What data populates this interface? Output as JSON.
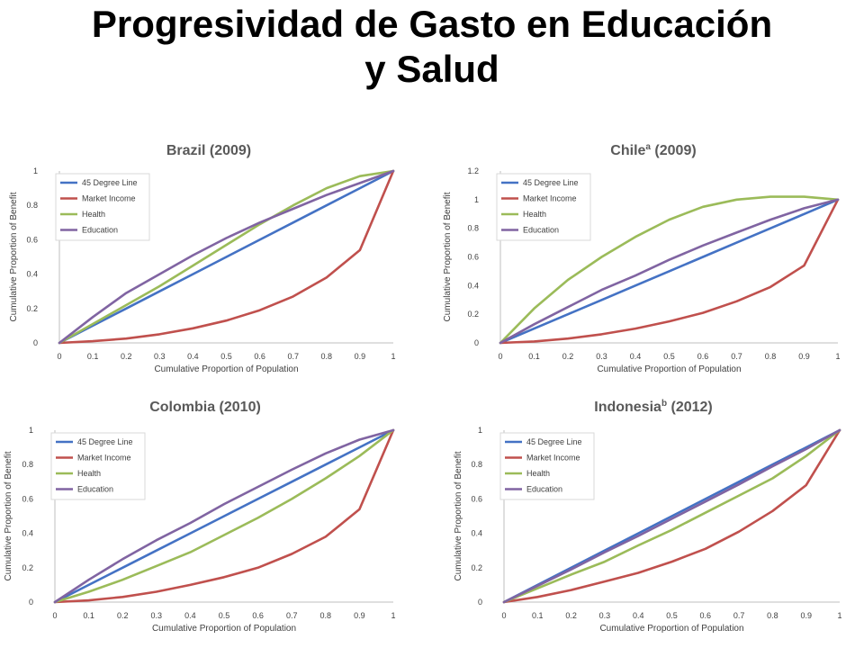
{
  "page_title_line1": "Progresividad de Gasto en Educación",
  "page_title_line2": "y Salud",
  "colors": {
    "45 Degree Line": "#4472C4",
    "Market Income": "#C0504D",
    "Health": "#9BBB59",
    "Education": "#8064A2"
  },
  "chart_data": [
    {
      "type": "line",
      "title": "Brazil (2009)",
      "title_superscript": "",
      "xlabel": "Cumulative Proportion of Population",
      "ylabel": "Cumulative Proportion of Benefit",
      "x": [
        0,
        0.1,
        0.2,
        0.3,
        0.4,
        0.5,
        0.6,
        0.7,
        0.8,
        0.9,
        1
      ],
      "xticks": [
        "0",
        "0.1",
        "0.2",
        "0.3",
        "0.4",
        "0.5",
        "0.6",
        "0.7",
        "0.8",
        "0.9",
        "1"
      ],
      "yticks": [
        "0",
        "0.2",
        "0.4",
        "0.6",
        "0.8",
        "1"
      ],
      "ylim": [
        0,
        1
      ],
      "legend_position": "top-left",
      "series": [
        {
          "name": "45 Degree Line",
          "values": [
            0,
            0.1,
            0.2,
            0.3,
            0.4,
            0.5,
            0.6,
            0.7,
            0.8,
            0.9,
            1
          ]
        },
        {
          "name": "Market Income",
          "values": [
            0,
            0.01,
            0.025,
            0.05,
            0.085,
            0.13,
            0.19,
            0.27,
            0.38,
            0.54,
            1
          ]
        },
        {
          "name": "Health",
          "values": [
            0,
            0.11,
            0.22,
            0.33,
            0.45,
            0.57,
            0.69,
            0.8,
            0.9,
            0.97,
            1
          ]
        },
        {
          "name": "Education",
          "values": [
            0,
            0.15,
            0.29,
            0.4,
            0.51,
            0.61,
            0.7,
            0.78,
            0.86,
            0.93,
            1
          ]
        }
      ]
    },
    {
      "type": "line",
      "title": "Chile (2009)",
      "title_superscript": "a",
      "xlabel": "Cumulative Proportion of Population",
      "ylabel": "Cumulative Proportion of Benefit",
      "x": [
        0,
        0.1,
        0.2,
        0.3,
        0.4,
        0.5,
        0.6,
        0.7,
        0.8,
        0.9,
        1
      ],
      "xticks": [
        "0",
        "0.1",
        "0.2",
        "0.3",
        "0.4",
        "0.5",
        "0.6",
        "0.7",
        "0.8",
        "0.9",
        "1"
      ],
      "yticks": [
        "0",
        "0.2",
        "0.4",
        "0.6",
        "0.8",
        "1",
        "1.2"
      ],
      "ylim": [
        0,
        1.2
      ],
      "legend_position": "top-left",
      "series": [
        {
          "name": "45 Degree Line",
          "values": [
            0,
            0.1,
            0.2,
            0.3,
            0.4,
            0.5,
            0.6,
            0.7,
            0.8,
            0.9,
            1
          ]
        },
        {
          "name": "Market Income",
          "values": [
            0,
            0.01,
            0.03,
            0.06,
            0.1,
            0.15,
            0.21,
            0.29,
            0.39,
            0.54,
            1
          ]
        },
        {
          "name": "Health",
          "values": [
            0,
            0.24,
            0.44,
            0.6,
            0.74,
            0.86,
            0.95,
            1.0,
            1.02,
            1.02,
            1
          ]
        },
        {
          "name": "Education",
          "values": [
            0,
            0.13,
            0.25,
            0.37,
            0.47,
            0.58,
            0.68,
            0.77,
            0.86,
            0.94,
            1
          ]
        }
      ]
    },
    {
      "type": "line",
      "title": "Colombia (2010)",
      "title_superscript": "",
      "xlabel": "Cumulative Proportion of Population",
      "ylabel": "Cumulative Proportion of Benefit",
      "x": [
        0,
        0.1,
        0.2,
        0.3,
        0.4,
        0.5,
        0.6,
        0.7,
        0.8,
        0.9,
        1
      ],
      "xticks": [
        "0",
        "0.1",
        "0.2",
        "0.3",
        "0.4",
        "0.5",
        "0.6",
        "0.7",
        "0.8",
        "0.9",
        "1"
      ],
      "yticks": [
        "0",
        "0.2",
        "0.4",
        "0.6",
        "0.8",
        "1"
      ],
      "ylim": [
        0,
        1
      ],
      "legend_position": "top-left",
      "series": [
        {
          "name": "45 Degree Line",
          "values": [
            0,
            0.1,
            0.2,
            0.3,
            0.4,
            0.5,
            0.6,
            0.7,
            0.8,
            0.9,
            1
          ]
        },
        {
          "name": "Market Income",
          "values": [
            0,
            0.01,
            0.03,
            0.06,
            0.1,
            0.145,
            0.2,
            0.28,
            0.38,
            0.54,
            1
          ]
        },
        {
          "name": "Health",
          "values": [
            0,
            0.06,
            0.13,
            0.21,
            0.29,
            0.39,
            0.49,
            0.6,
            0.72,
            0.85,
            1
          ]
        },
        {
          "name": "Education",
          "values": [
            0,
            0.13,
            0.25,
            0.36,
            0.46,
            0.57,
            0.67,
            0.77,
            0.865,
            0.945,
            1
          ]
        }
      ]
    },
    {
      "type": "line",
      "title": "Indonesia (2012)",
      "title_superscript": "b",
      "xlabel": "Cumulative Proportion of Population",
      "ylabel": "Cumulative Proportion of Benefit",
      "x": [
        0,
        0.1,
        0.2,
        0.3,
        0.4,
        0.5,
        0.6,
        0.7,
        0.8,
        0.9,
        1
      ],
      "xticks": [
        "0",
        "0.1",
        "0.2",
        "0.3",
        "0.4",
        "0.5",
        "0.6",
        "0.7",
        "0.8",
        "0.9",
        "1"
      ],
      "yticks": [
        "0",
        "0.2",
        "0.4",
        "0.6",
        "0.8",
        "1"
      ],
      "ylim": [
        0,
        1
      ],
      "legend_position": "top-left",
      "series": [
        {
          "name": "45 Degree Line",
          "values": [
            0,
            0.1,
            0.2,
            0.3,
            0.4,
            0.5,
            0.6,
            0.7,
            0.8,
            0.9,
            1
          ]
        },
        {
          "name": "Market Income",
          "values": [
            0,
            0.03,
            0.07,
            0.12,
            0.17,
            0.235,
            0.31,
            0.41,
            0.53,
            0.68,
            1
          ]
        },
        {
          "name": "Health",
          "values": [
            0,
            0.08,
            0.16,
            0.235,
            0.33,
            0.42,
            0.52,
            0.62,
            0.72,
            0.85,
            1
          ]
        },
        {
          "name": "Education",
          "values": [
            0,
            0.095,
            0.19,
            0.29,
            0.385,
            0.485,
            0.585,
            0.685,
            0.79,
            0.89,
            1
          ]
        }
      ]
    }
  ]
}
